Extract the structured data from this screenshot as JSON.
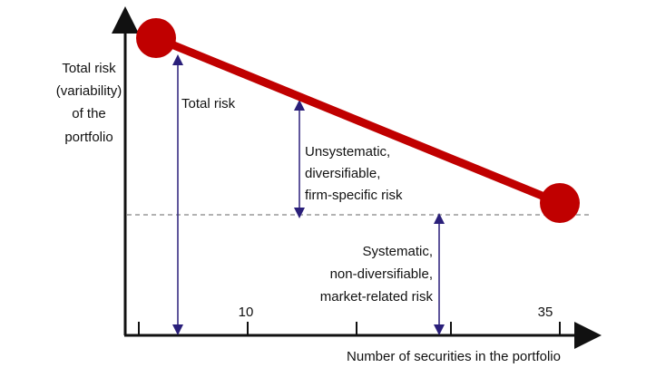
{
  "y_axis_label": [
    "Total risk",
    "(variability)",
    "of the",
    "portfolio"
  ],
  "x_axis_label": "Number of securities in the portfolio",
  "x_tick_labels": [
    "10",
    "35"
  ],
  "annotations": {
    "total": "Total risk",
    "unsystematic": [
      "Unsystematic,",
      "diversifiable,",
      "firm-specific risk"
    ],
    "systematic": [
      "Systematic,",
      "non-diversifiable,",
      "market-related risk"
    ]
  }
}
